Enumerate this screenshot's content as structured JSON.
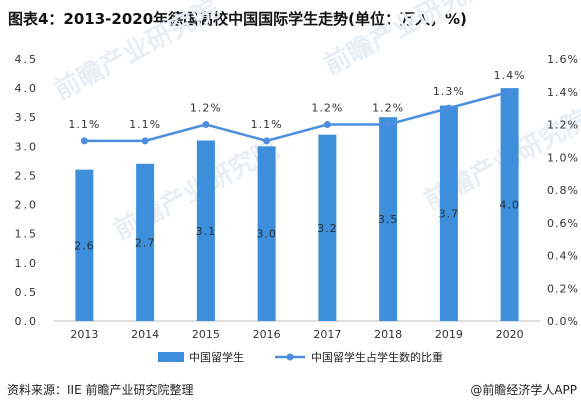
{
  "title": "图表4：2013-2020年德国高校中国国际学生走势(单位：万人，%)",
  "footer": {
    "source": "资料来源：IIE 前瞻产业研究院整理",
    "brand": "@前瞻经济学人APP"
  },
  "watermark_text": "前瞻产业研究院",
  "colors": {
    "bar": "#3d8fdb",
    "line": "#4b8ee0",
    "bar_label": "#23303a",
    "tick": "#333333"
  },
  "chart_data": {
    "type": "bar+line",
    "categories": [
      "2013",
      "2014",
      "2015",
      "2016",
      "2017",
      "2018",
      "2019",
      "2020"
    ],
    "series": [
      {
        "name": "中国留学生",
        "type": "bar",
        "axis": "left",
        "values": [
          2.6,
          2.7,
          3.1,
          3.0,
          3.2,
          3.5,
          3.7,
          4.0
        ],
        "labels": [
          "2.6",
          "2.7",
          "3.1",
          "3.0",
          "3.2",
          "3.5",
          "3.7",
          "4.0"
        ]
      },
      {
        "name": "中国留学生占学生数的比重",
        "type": "line",
        "axis": "right",
        "values": [
          1.1,
          1.1,
          1.2,
          1.1,
          1.2,
          1.2,
          1.3,
          1.4
        ],
        "labels": [
          "1.1%",
          "1.1%",
          "1.2%",
          "1.1%",
          "1.2%",
          "1.2%",
          "1.3%",
          "1.4%"
        ]
      }
    ],
    "y_left": {
      "min": 0,
      "max": 4.5,
      "ticks": [
        "0.0",
        "0.5",
        "1.0",
        "1.5",
        "2.0",
        "2.5",
        "3.0",
        "3.5",
        "4.0",
        "4.5"
      ]
    },
    "y_right": {
      "min": 0,
      "max": 1.6,
      "ticks": [
        "0.0%",
        "0.2%",
        "0.4%",
        "0.6%",
        "0.8%",
        "1.0%",
        "1.2%",
        "1.4%",
        "1.6%"
      ]
    },
    "grid": false,
    "legend_position": "bottom"
  }
}
